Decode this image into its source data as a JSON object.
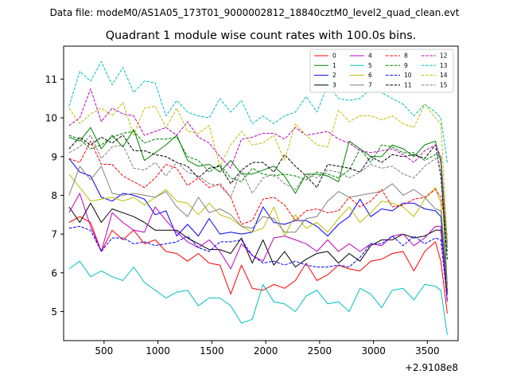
{
  "chart_data": {
    "type": "line",
    "suptitle": "Data file: modeM0/AS1A05_173T01_9000002812_18840cztM0_level2_quad_clean.evt",
    "title": "Quadrant 1 module wise count rates with 100.0s bins.",
    "xlabel": "",
    "ylabel": "",
    "x_offset_label": "+2.9108e8",
    "xlim": [
      125,
      3785
    ],
    "ylim": [
      4.25,
      11.85
    ],
    "xticks": [
      500,
      1000,
      1500,
      2000,
      2500,
      3000,
      3500
    ],
    "yticks": [
      5,
      6,
      7,
      8,
      9,
      10,
      11
    ],
    "legend_position": "top-right",
    "x": [
      175,
      275,
      375,
      475,
      575,
      675,
      775,
      875,
      975,
      1075,
      1175,
      1275,
      1375,
      1475,
      1575,
      1675,
      1775,
      1875,
      1975,
      2075,
      2175,
      2275,
      2375,
      2475,
      2575,
      2675,
      2775,
      2875,
      2975,
      3075,
      3175,
      3275,
      3375,
      3475,
      3575,
      3625,
      3685
    ],
    "series": [
      {
        "name": "0",
        "color": "#ff0000",
        "dash": "solid",
        "values": [
          7.3,
          7.45,
          7.3,
          6.55,
          7.1,
          6.85,
          7.1,
          6.75,
          6.85,
          6.55,
          6.5,
          6.3,
          6.5,
          6.25,
          6.2,
          5.45,
          6.2,
          5.6,
          5.55,
          5.7,
          5.6,
          5.8,
          6.25,
          5.8,
          5.95,
          6.2,
          6.1,
          6.05,
          6.3,
          6.35,
          6.5,
          6.55,
          6.05,
          6.55,
          6.8,
          6.3,
          4.95
        ]
      },
      {
        "name": "1",
        "color": "#008000",
        "dash": "solid",
        "values": [
          9.5,
          9.4,
          9.75,
          9.2,
          9.55,
          9.25,
          9.7,
          8.9,
          9.1,
          9.3,
          9.55,
          8.9,
          8.75,
          8.8,
          8.6,
          8.9,
          8.55,
          8.55,
          8.65,
          8.75,
          8.5,
          8.05,
          8.55,
          8.55,
          8.5,
          8.35,
          9.4,
          9.2,
          9.0,
          9.0,
          9.3,
          9.2,
          9.0,
          9.3,
          9.4,
          8.85,
          5.65
        ]
      },
      {
        "name": "2",
        "color": "#0000ff",
        "dash": "solid",
        "values": [
          8.95,
          8.6,
          8.5,
          7.95,
          7.85,
          8.05,
          8.0,
          7.9,
          7.5,
          7.6,
          6.95,
          7.25,
          6.95,
          7.4,
          7.0,
          7.05,
          7.0,
          7.05,
          7.7,
          7.3,
          7.25,
          7.35,
          7.35,
          7.2,
          6.95,
          7.25,
          7.45,
          7.9,
          7.45,
          7.65,
          7.6,
          7.8,
          7.8,
          7.65,
          7.6,
          7.45,
          5.55
        ]
      },
      {
        "name": "3",
        "color": "#000000",
        "dash": "solid",
        "values": [
          7.7,
          7.3,
          7.8,
          7.3,
          7.65,
          7.55,
          7.45,
          7.3,
          7.1,
          7.1,
          7.1,
          6.9,
          6.75,
          6.6,
          6.6,
          6.5,
          6.9,
          6.25,
          6.85,
          6.2,
          6.55,
          6.15,
          6.35,
          6.5,
          6.55,
          6.25,
          6.5,
          6.3,
          6.7,
          6.85,
          6.85,
          7.0,
          6.9,
          6.95,
          7.1,
          7.1,
          5.45
        ]
      },
      {
        "name": "4",
        "color": "#bf00bf",
        "dash": "solid",
        "values": [
          7.55,
          8.05,
          7.2,
          6.55,
          7.55,
          7.3,
          7.1,
          7.05,
          7.7,
          7.35,
          7.05,
          6.8,
          6.65,
          6.85,
          6.55,
          6.1,
          6.75,
          6.45,
          6.3,
          6.9,
          6.95,
          6.85,
          6.75,
          6.55,
          6.85,
          6.55,
          6.75,
          6.55,
          6.75,
          6.7,
          6.95,
          7.0,
          6.7,
          6.9,
          7.2,
          7.2,
          5.25
        ]
      },
      {
        "name": "5",
        "color": "#00bfbf",
        "dash": "solid",
        "values": [
          6.1,
          6.3,
          5.9,
          6.05,
          5.9,
          5.8,
          6.15,
          5.75,
          5.55,
          5.35,
          5.5,
          5.55,
          5.15,
          5.35,
          5.35,
          5.15,
          4.7,
          4.8,
          5.7,
          5.25,
          5.2,
          5.0,
          5.4,
          5.55,
          5.2,
          5.25,
          5.0,
          5.6,
          5.45,
          5.1,
          5.55,
          5.6,
          5.3,
          5.7,
          5.65,
          5.55,
          4.4
        ]
      },
      {
        "name": "6",
        "color": "#bfbf00",
        "dash": "solid",
        "values": [
          8.55,
          8.2,
          7.85,
          7.9,
          7.95,
          7.85,
          7.95,
          7.75,
          7.95,
          8.15,
          7.85,
          7.8,
          7.5,
          7.8,
          7.5,
          7.4,
          7.2,
          7.05,
          7.15,
          7.7,
          6.95,
          7.5,
          7.15,
          7.3,
          7.05,
          7.4,
          7.7,
          7.3,
          7.55,
          7.85,
          7.8,
          7.7,
          7.45,
          7.9,
          8.2,
          7.8,
          5.6
        ]
      },
      {
        "name": "7",
        "color": "#808080",
        "dash": "solid",
        "values": [
          8.0,
          8.75,
          8.4,
          8.75,
          8.05,
          8.0,
          8.05,
          8.0,
          7.95,
          8.1,
          7.7,
          7.45,
          7.95,
          7.55,
          7.65,
          7.5,
          7.2,
          7.15,
          7.45,
          7.4,
          7.05,
          7.05,
          7.4,
          7.45,
          7.85,
          8.1,
          7.95,
          8.0,
          8.05,
          8.1,
          8.3,
          8.0,
          8.15,
          7.95,
          7.65,
          7.6,
          5.7
        ]
      },
      {
        "name": "8",
        "color": "#ff0000",
        "dash": "dashed",
        "values": [
          8.95,
          8.85,
          9.4,
          8.8,
          8.8,
          8.5,
          8.35,
          8.2,
          8.45,
          8.8,
          8.7,
          8.25,
          8.45,
          8.2,
          8.3,
          7.95,
          7.25,
          7.35,
          7.9,
          7.95,
          7.75,
          7.35,
          7.6,
          7.65,
          7.55,
          7.6,
          7.95,
          7.7,
          7.85,
          8.15,
          7.7,
          7.75,
          7.9,
          7.95,
          8.15,
          7.95,
          6.95
        ]
      },
      {
        "name": "9",
        "color": "#008000",
        "dash": "dashed",
        "values": [
          9.55,
          9.45,
          9.2,
          9.3,
          9.5,
          9.6,
          9.65,
          9.35,
          9.45,
          9.45,
          9.5,
          9.0,
          8.9,
          8.6,
          8.8,
          8.45,
          8.35,
          8.7,
          8.55,
          8.5,
          8.55,
          8.5,
          8.4,
          8.6,
          8.55,
          8.45,
          8.65,
          9.2,
          8.85,
          9.3,
          9.25,
          9.1,
          9.1,
          8.9,
          9.05,
          9.0,
          6.55
        ]
      },
      {
        "name": "10",
        "color": "#0000ff",
        "dash": "dashed",
        "values": [
          7.15,
          7.2,
          7.1,
          6.55,
          6.9,
          6.9,
          6.75,
          6.8,
          6.7,
          6.75,
          6.8,
          6.95,
          6.65,
          6.55,
          6.8,
          6.8,
          6.85,
          6.45,
          6.25,
          6.3,
          6.2,
          6.3,
          6.2,
          6.15,
          6.15,
          6.2,
          6.15,
          6.4,
          6.75,
          6.75,
          6.95,
          6.7,
          6.95,
          6.75,
          6.9,
          6.85,
          5.3
        ]
      },
      {
        "name": "11",
        "color": "#000000",
        "dash": "dashed",
        "values": [
          9.2,
          9.5,
          9.3,
          9.5,
          9.35,
          9.55,
          9.15,
          9.15,
          9.05,
          9.0,
          8.85,
          8.75,
          8.45,
          8.7,
          8.75,
          8.3,
          8.65,
          8.85,
          8.85,
          8.6,
          9.05,
          8.75,
          8.5,
          8.2,
          8.8,
          8.75,
          8.7,
          8.6,
          9.0,
          8.85,
          9.05,
          9.0,
          9.05,
          8.95,
          9.3,
          8.5,
          6.35
        ]
      },
      {
        "name": "12",
        "color": "#bf00bf",
        "dash": "dashed",
        "values": [
          9.8,
          10.0,
          10.75,
          9.9,
          10.25,
          10.1,
          10.05,
          9.55,
          9.65,
          9.75,
          9.55,
          9.9,
          9.5,
          9.35,
          9.0,
          8.7,
          9.45,
          9.5,
          9.6,
          9.6,
          9.45,
          9.75,
          9.55,
          9.6,
          9.65,
          9.45,
          9.35,
          9.15,
          9.1,
          9.15,
          9.2,
          9.05,
          8.85,
          9.15,
          9.3,
          9.0,
          6.75
        ]
      },
      {
        "name": "13",
        "color": "#00bfbf",
        "dash": "dashed",
        "values": [
          10.3,
          11.2,
          10.95,
          11.45,
          10.85,
          11.3,
          10.65,
          10.95,
          10.9,
          10.05,
          10.45,
          10.15,
          10.05,
          10.0,
          10.5,
          10.15,
          10.45,
          9.85,
          10.05,
          9.85,
          10.05,
          10.15,
          10.55,
          10.15,
          10.85,
          10.5,
          10.45,
          10.5,
          10.75,
          10.65,
          10.5,
          10.35,
          10.05,
          10.35,
          10.15,
          10.0,
          8.85
        ]
      },
      {
        "name": "14",
        "color": "#bfbf00",
        "dash": "dashed",
        "values": [
          10.25,
          9.85,
          10.1,
          10.25,
          10.05,
          10.4,
          9.55,
          10.25,
          10.3,
          9.75,
          10.25,
          9.65,
          9.6,
          9.8,
          8.75,
          9.3,
          9.65,
          9.3,
          9.35,
          9.55,
          8.9,
          9.85,
          9.55,
          9.3,
          9.25,
          10.2,
          9.9,
          10.05,
          10.05,
          9.95,
          10.05,
          9.85,
          9.75,
          10.35,
          10.0,
          9.85,
          6.75
        ]
      },
      {
        "name": "15",
        "color": "#808080",
        "dash": "dashed",
        "values": [
          9.1,
          9.25,
          9.55,
          8.95,
          9.25,
          9.3,
          8.7,
          8.65,
          8.85,
          8.5,
          8.85,
          8.6,
          8.5,
          8.3,
          8.25,
          7.95,
          8.65,
          8.05,
          8.45,
          8.55,
          8.3,
          8.15,
          8.55,
          8.45,
          8.65,
          8.6,
          8.45,
          8.6,
          8.8,
          8.7,
          8.75,
          8.55,
          8.45,
          8.75,
          8.95,
          8.8,
          6.65
        ]
      }
    ]
  }
}
